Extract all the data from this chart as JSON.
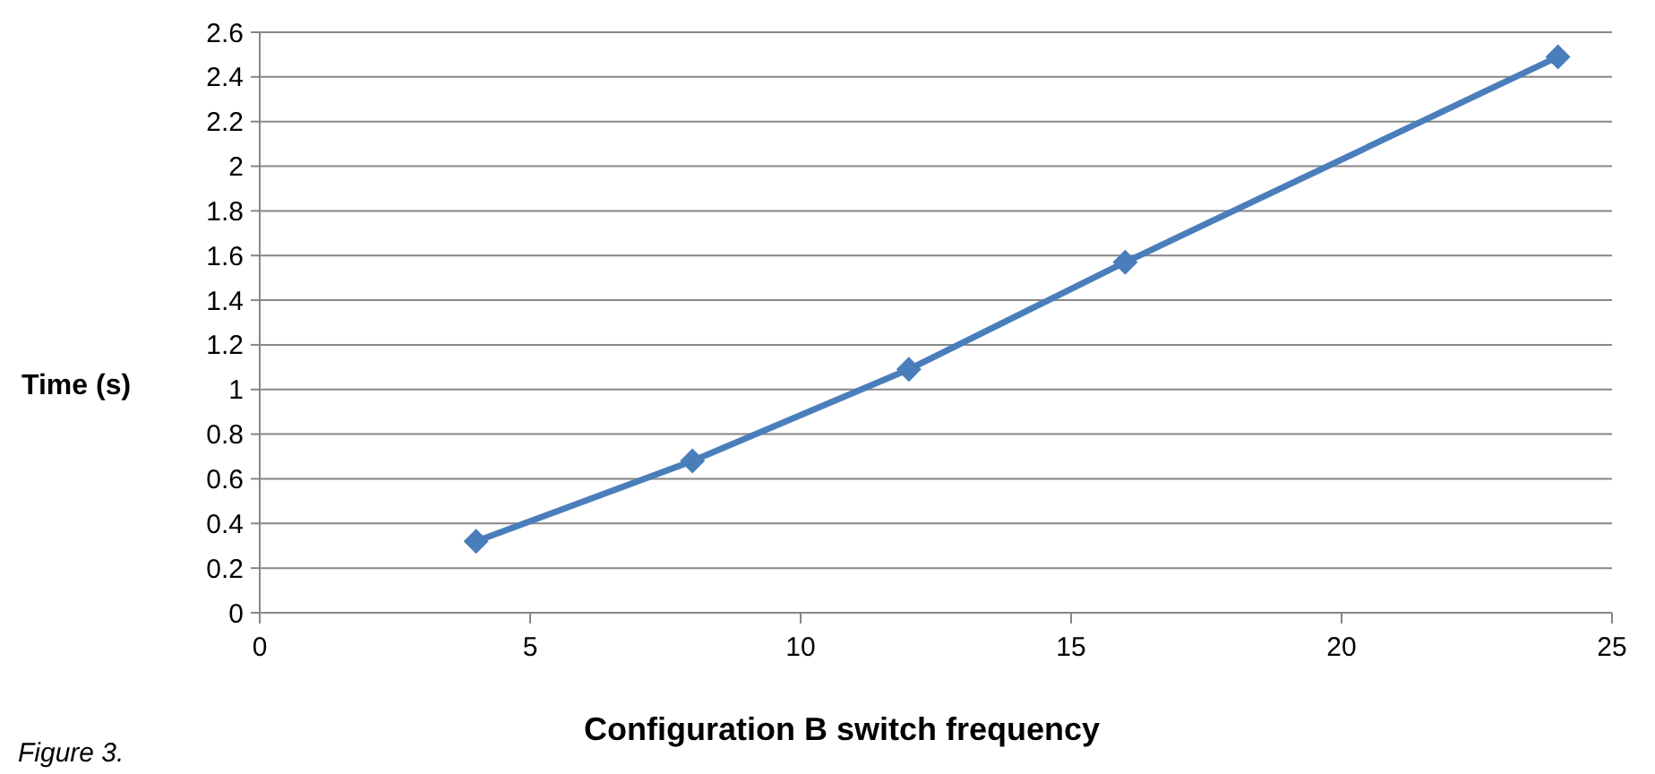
{
  "chart_data": {
    "type": "line",
    "xlabel": "Configuration B switch frequency",
    "ylabel": "Time (s)",
    "annotations": [
      "Figure 3."
    ],
    "x": [
      4,
      8,
      12,
      16,
      24
    ],
    "series": [
      {
        "color": "#4a7ebb",
        "values": [
          0.32,
          0.68,
          1.09,
          1.57,
          2.49
        ]
      }
    ],
    "xlim": [
      0,
      25
    ],
    "xticks": [
      0,
      5,
      10,
      15,
      20,
      25
    ],
    "ylim": [
      0,
      2.6
    ],
    "yticks": [
      0,
      {
        "value": 0.2,
        "label": "0.2"
      },
      {
        "value": 0.4,
        "label": "0.4"
      },
      {
        "value": 0.6,
        "label": "0.6"
      },
      {
        "value": 0.8,
        "label": "0.8"
      },
      1,
      {
        "value": 1.2,
        "label": "1.2"
      },
      {
        "value": 1.4,
        "label": "1.4"
      },
      {
        "value": 1.6,
        "label": "1.6"
      },
      {
        "value": 1.8,
        "label": "1.8"
      },
      2,
      {
        "value": 2.2,
        "label": "2.2"
      },
      {
        "value": 2.4,
        "label": "2.4"
      },
      {
        "value": 2.6,
        "label": "2.6"
      }
    ],
    "grid": "y",
    "marker": "diamond",
    "line_style": "solid"
  }
}
